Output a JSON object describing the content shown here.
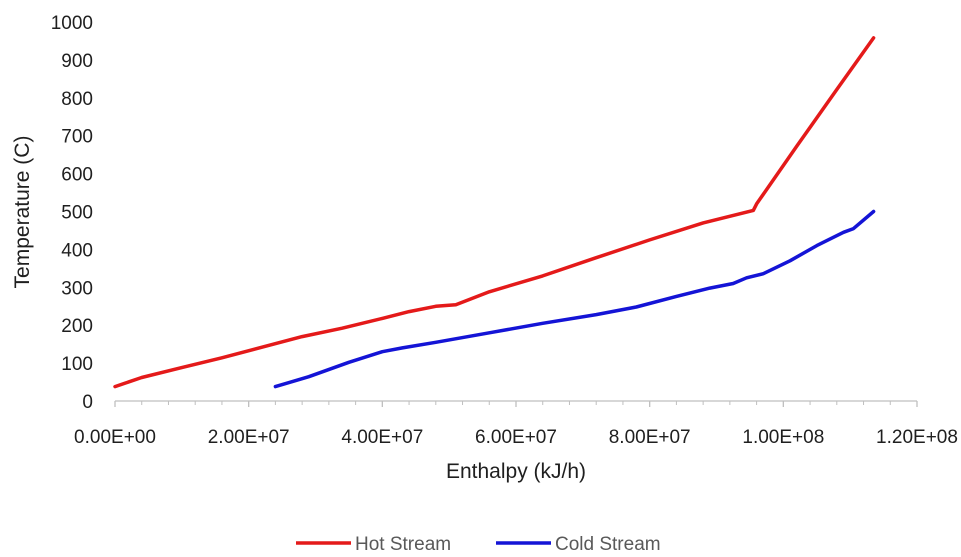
{
  "chart_data": {
    "type": "line",
    "title": "",
    "xlabel": "Enthalpy (kJ/h)",
    "ylabel": "Temperature (C)",
    "xlim": [
      0,
      120000000
    ],
    "ylim": [
      0,
      1000
    ],
    "x_ticks": [
      0,
      20000000,
      40000000,
      60000000,
      80000000,
      100000000,
      120000000
    ],
    "x_tick_labels": [
      "0.00E+00",
      "2.00E+07",
      "4.00E+07",
      "6.00E+07",
      "8.00E+07",
      "1.00E+08",
      "1.20E+08"
    ],
    "y_ticks": [
      0,
      100,
      200,
      300,
      400,
      500,
      600,
      700,
      800,
      900,
      1000
    ],
    "y_tick_labels": [
      "0",
      "100",
      "200",
      "300",
      "400",
      "500",
      "600",
      "700",
      "800",
      "900",
      "1000"
    ],
    "grid": false,
    "legend_position": "bottom",
    "series": [
      {
        "name": "Hot Stream",
        "color": "#e41a1a",
        "points": [
          [
            0,
            38
          ],
          [
            4000000,
            62
          ],
          [
            10000000,
            88
          ],
          [
            16000000,
            114
          ],
          [
            22000000,
            142
          ],
          [
            28000000,
            170
          ],
          [
            34000000,
            192
          ],
          [
            40000000,
            218
          ],
          [
            44000000,
            236
          ],
          [
            48000000,
            250
          ],
          [
            51000000,
            254
          ],
          [
            56000000,
            288
          ],
          [
            64000000,
            330
          ],
          [
            72000000,
            378
          ],
          [
            80000000,
            425
          ],
          [
            88000000,
            470
          ],
          [
            95500000,
            503
          ],
          [
            96000000,
            520
          ],
          [
            102000000,
            672
          ],
          [
            108000000,
            822
          ],
          [
            113500000,
            958
          ]
        ]
      },
      {
        "name": "Cold Stream",
        "color": "#1414d6",
        "points": [
          [
            24000000,
            38
          ],
          [
            29000000,
            64
          ],
          [
            35000000,
            102
          ],
          [
            40000000,
            130
          ],
          [
            43000000,
            140
          ],
          [
            48000000,
            155
          ],
          [
            56000000,
            180
          ],
          [
            64000000,
            205
          ],
          [
            72000000,
            228
          ],
          [
            78000000,
            248
          ],
          [
            84000000,
            276
          ],
          [
            89000000,
            298
          ],
          [
            92500000,
            310
          ],
          [
            94500000,
            325
          ],
          [
            97000000,
            336
          ],
          [
            101000000,
            370
          ],
          [
            105000000,
            410
          ],
          [
            109000000,
            445
          ],
          [
            110500000,
            455
          ],
          [
            113500000,
            500
          ]
        ]
      }
    ]
  }
}
